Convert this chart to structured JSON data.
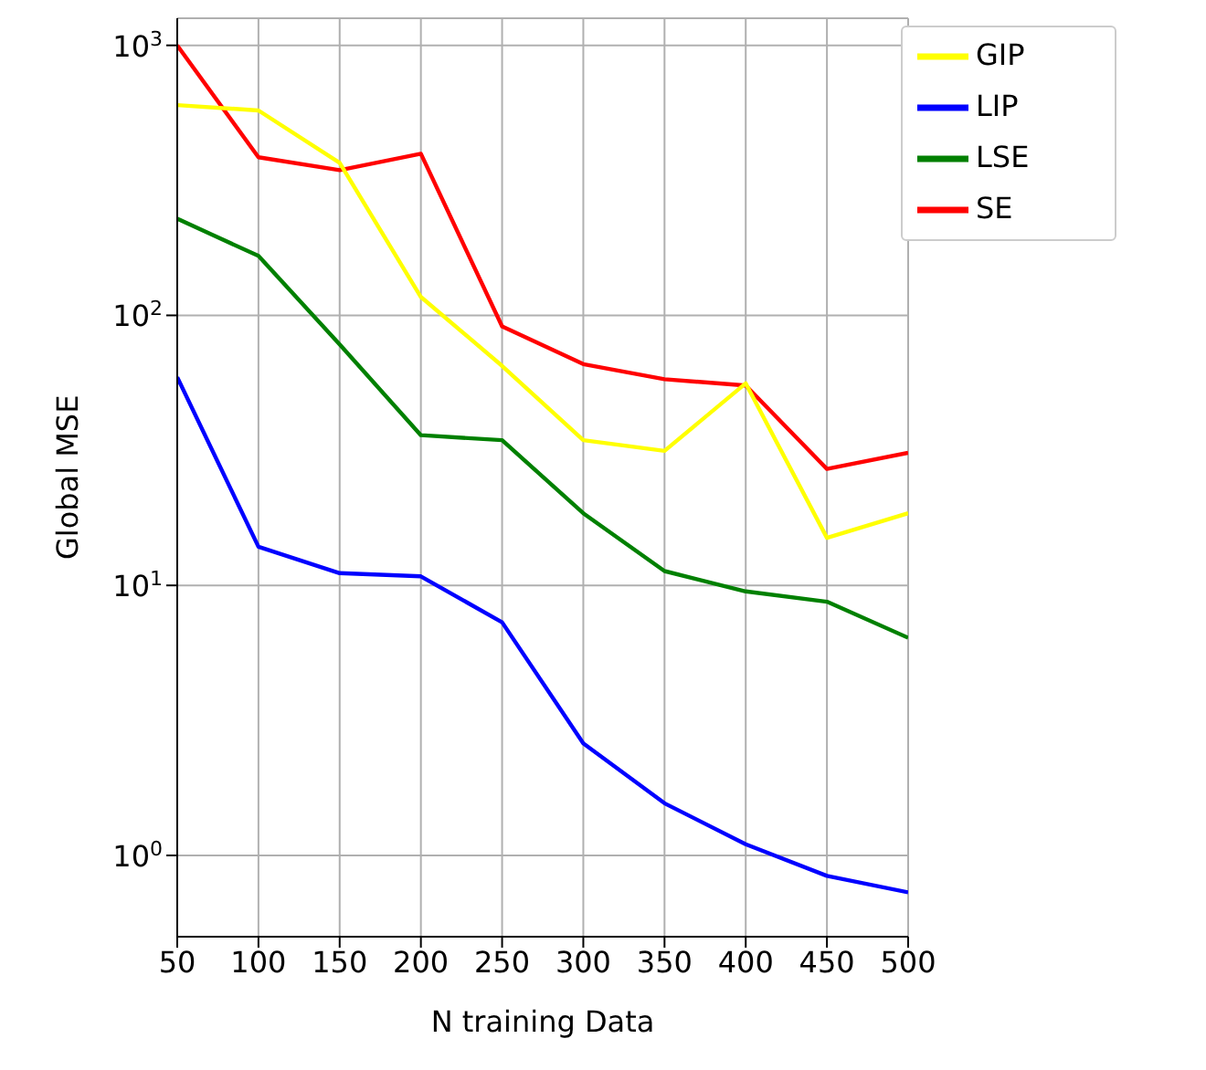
{
  "chart_data": {
    "type": "line",
    "xlabel": "N training Data",
    "ylabel": "Global MSE",
    "x": [
      50,
      100,
      150,
      200,
      250,
      300,
      350,
      400,
      450,
      500
    ],
    "series": [
      {
        "name": "SE",
        "color": "#ff0000",
        "values": [
          1000,
          385,
          345,
          397,
          91,
          66,
          58,
          55,
          27,
          31
        ]
      },
      {
        "name": "GIP",
        "color": "#ffff00",
        "values": [
          601,
          574,
          367,
          117,
          65,
          34.5,
          31.5,
          56,
          15,
          18.5
        ]
      },
      {
        "name": "LSE",
        "color": "#008000",
        "values": [
          228,
          166,
          78,
          36,
          34.5,
          18.5,
          11.3,
          9.5,
          8.7,
          6.4
        ]
      },
      {
        "name": "LIP",
        "color": "#0000ff",
        "values": [
          59,
          13.9,
          11.1,
          10.8,
          7.3,
          2.6,
          1.56,
          1.1,
          0.84,
          0.73
        ]
      }
    ],
    "log": "y",
    "xlim": [
      50,
      500
    ],
    "xticks": [
      50,
      100,
      150,
      200,
      250,
      300,
      350,
      400,
      450,
      500
    ],
    "ylim": [
      0.5,
      1260
    ],
    "yticks": [
      {
        "value": 1,
        "label": "10$^{0}$"
      },
      {
        "value": 10,
        "label": "10$^{1}$"
      },
      {
        "value": 100,
        "label": "10$^{2}$"
      },
      {
        "value": 1000,
        "label": "10$^{3}$"
      }
    ],
    "grid": true,
    "legend": "top right",
    "marker": "none",
    "line_style": "solid"
  }
}
